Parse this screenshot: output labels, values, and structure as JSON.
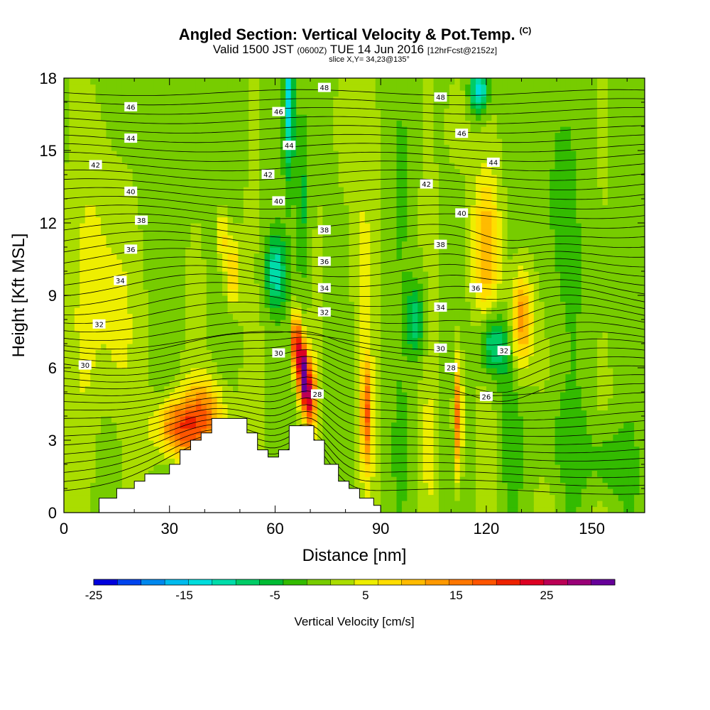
{
  "header": {
    "title": "Angled Section: Vertical Velocity & Pot.Temp.",
    "title_mark": "(C)",
    "subtitle_pre": "Valid 1500 JST",
    "subtitle_utc": "(0600Z)",
    "subtitle_date": "TUE 14 Jun 2016",
    "subtitle_fcst": "[12hrFcst@2152z]",
    "slice": "slice X,Y= 34,23@135°"
  },
  "chart_data": {
    "type": "heatmap",
    "xlabel": "Distance [nm]",
    "ylabel": "Height [Kft MSL]",
    "xlim": [
      0,
      165
    ],
    "ylim": [
      0,
      18
    ],
    "x_ticks": [
      0,
      30,
      60,
      90,
      120,
      150
    ],
    "y_ticks": [
      0,
      3,
      6,
      9,
      12,
      15,
      18
    ],
    "fill_variable": "Vertical Velocity [cm/s]",
    "colorbar": {
      "label": "Vertical Velocity [cm/s]",
      "tick_labels": [
        "-25",
        "-15",
        "-5",
        "5",
        "15",
        "25"
      ],
      "tick_values": [
        -25,
        -15,
        -5,
        5,
        15,
        25
      ],
      "colors": [
        "#0000dd",
        "#0044ee",
        "#0088ee",
        "#00bbee",
        "#00dddd",
        "#00ddaa",
        "#00cc66",
        "#00bb33",
        "#33bb00",
        "#77cc00",
        "#aadd00",
        "#eeee00",
        "#ffdd00",
        "#ffbb00",
        "#ff9900",
        "#ff7700",
        "#ff5500",
        "#ee2200",
        "#dd0022",
        "#bb0055",
        "#990077",
        "#660099"
      ]
    },
    "max_updraft": {
      "x": 68,
      "y": 6.0,
      "value": 30
    },
    "terrain": [
      [
        10,
        0
      ],
      [
        10,
        0.6
      ],
      [
        15,
        0.6
      ],
      [
        15,
        1.0
      ],
      [
        20,
        1.0
      ],
      [
        20,
        1.3
      ],
      [
        23,
        1.3
      ],
      [
        23,
        1.6
      ],
      [
        30,
        1.6
      ],
      [
        30,
        2.0
      ],
      [
        33,
        2.0
      ],
      [
        33,
        2.6
      ],
      [
        36,
        2.6
      ],
      [
        36,
        3.0
      ],
      [
        39,
        3.0
      ],
      [
        39,
        3.3
      ],
      [
        42,
        3.3
      ],
      [
        42,
        3.9
      ],
      [
        52,
        3.9
      ],
      [
        52,
        3.3
      ],
      [
        55,
        3.3
      ],
      [
        55,
        2.6
      ],
      [
        58,
        2.6
      ],
      [
        58,
        2.3
      ],
      [
        61,
        2.3
      ],
      [
        61,
        2.6
      ],
      [
        64,
        2.6
      ],
      [
        64,
        3.6
      ],
      [
        71,
        3.6
      ],
      [
        71,
        3.0
      ],
      [
        74,
        3.0
      ],
      [
        74,
        2.0
      ],
      [
        78,
        2.0
      ],
      [
        78,
        1.3
      ],
      [
        81,
        1.3
      ],
      [
        81,
        1.0
      ],
      [
        84,
        1.0
      ],
      [
        84,
        0.6
      ],
      [
        88,
        0.6
      ],
      [
        88,
        0.3
      ],
      [
        90,
        0.3
      ],
      [
        90,
        0
      ]
    ],
    "theta_contours": [
      {
        "label": "26",
        "label_pos": [
          120,
          4.8
        ]
      },
      {
        "label": "28",
        "label_pos": [
          72,
          4.9
        ]
      },
      {
        "label": "28",
        "label_pos": [
          110,
          6.0
        ]
      },
      {
        "label": "30",
        "label_pos": [
          6,
          6.1
        ]
      },
      {
        "label": "30",
        "label_pos": [
          61,
          6.6
        ]
      },
      {
        "label": "30",
        "label_pos": [
          107,
          6.8
        ]
      },
      {
        "label": "32",
        "label_pos": [
          10,
          7.8
        ]
      },
      {
        "label": "32",
        "label_pos": [
          74,
          8.3
        ]
      },
      {
        "label": "32",
        "label_pos": [
          125,
          6.7
        ]
      },
      {
        "label": "34",
        "label_pos": [
          16,
          9.6
        ]
      },
      {
        "label": "34",
        "label_pos": [
          74,
          9.3
        ]
      },
      {
        "label": "34",
        "label_pos": [
          107,
          8.5
        ]
      },
      {
        "label": "36",
        "label_pos": [
          19,
          10.9
        ]
      },
      {
        "label": "36",
        "label_pos": [
          74,
          10.4
        ]
      },
      {
        "label": "36",
        "label_pos": [
          117,
          9.3
        ]
      },
      {
        "label": "38",
        "label_pos": [
          22,
          12.1
        ]
      },
      {
        "label": "38",
        "label_pos": [
          74,
          11.7
        ]
      },
      {
        "label": "38",
        "label_pos": [
          107,
          11.1
        ]
      },
      {
        "label": "40",
        "label_pos": [
          19,
          13.3
        ]
      },
      {
        "label": "40",
        "label_pos": [
          61,
          12.9
        ]
      },
      {
        "label": "40",
        "label_pos": [
          113,
          12.4
        ]
      },
      {
        "label": "42",
        "label_pos": [
          9,
          14.4
        ]
      },
      {
        "label": "42",
        "label_pos": [
          58,
          14.0
        ]
      },
      {
        "label": "42",
        "label_pos": [
          103,
          13.6
        ]
      },
      {
        "label": "44",
        "label_pos": [
          19,
          15.5
        ]
      },
      {
        "label": "44",
        "label_pos": [
          64,
          15.2
        ]
      },
      {
        "label": "44",
        "label_pos": [
          122,
          14.5
        ]
      },
      {
        "label": "46",
        "label_pos": [
          19,
          16.8
        ]
      },
      {
        "label": "46",
        "label_pos": [
          61,
          16.6
        ]
      },
      {
        "label": "46",
        "label_pos": [
          113,
          15.7
        ]
      },
      {
        "label": "48",
        "label_pos": [
          74,
          17.6
        ]
      },
      {
        "label": "48",
        "label_pos": [
          107,
          17.2
        ]
      }
    ]
  }
}
